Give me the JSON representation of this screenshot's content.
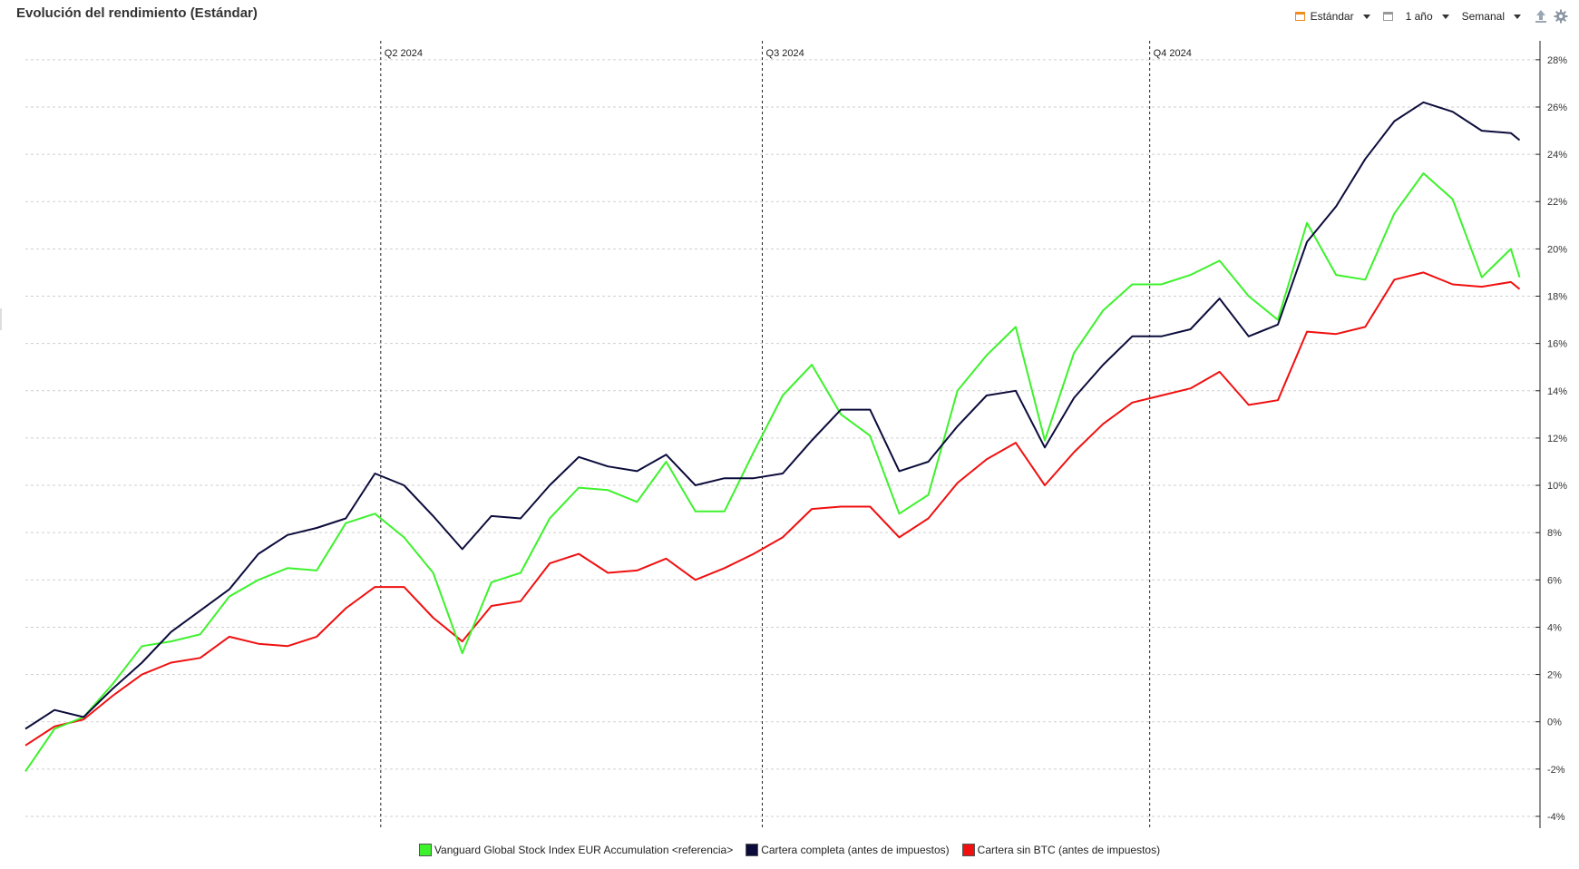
{
  "header": {
    "title": "Evolución del rendimiento (Estándar)"
  },
  "toolbar": {
    "view_label": "Estándar",
    "range_label": "1 año",
    "interval_label": "Semanal"
  },
  "colors": {
    "green": "#3df22c",
    "navy": "#0c0c3c",
    "red": "#f01010"
  },
  "chart_data": {
    "type": "line",
    "title": "Evolución del rendimiento (Estándar)",
    "ylim": [
      -4.5,
      28.8
    ],
    "y_ticks": [
      -4,
      -2,
      0,
      2,
      4,
      6,
      8,
      10,
      12,
      14,
      16,
      18,
      20,
      22,
      24,
      26,
      28
    ],
    "y_tick_suffix": "%",
    "grid": true,
    "legend_position": "bottom",
    "x_range": [
      0,
      52
    ],
    "quarter_markers": [
      {
        "label": "Q2 2024",
        "x": 12.2
      },
      {
        "label": "Q3 2024",
        "x": 25.3
      },
      {
        "label": "Q4 2024",
        "x": 38.6
      }
    ],
    "series": [
      {
        "name": "Vanguard Global Stock Index EUR Accumulation <referencia>",
        "color": "#3df22c",
        "x": [
          0,
          1,
          2,
          3,
          4,
          5,
          6,
          7,
          8,
          9,
          10,
          11,
          12,
          13,
          14,
          15,
          16,
          17,
          18,
          19,
          20,
          21,
          22,
          23,
          24,
          25,
          26,
          27,
          28,
          29,
          30,
          31,
          32,
          33,
          34,
          35,
          36,
          37,
          38,
          39,
          40,
          41,
          42,
          43,
          44,
          45,
          46,
          47,
          48,
          49,
          50,
          51,
          51.3
        ],
        "values": [
          -2.1,
          -0.3,
          0.2,
          1.6,
          3.2,
          3.4,
          3.7,
          5.3,
          6.0,
          6.5,
          6.4,
          8.4,
          8.8,
          7.8,
          6.3,
          2.9,
          5.9,
          6.3,
          8.6,
          9.9,
          9.8,
          9.3,
          11.0,
          8.9,
          8.9,
          11.4,
          13.8,
          15.1,
          13.0,
          12.1,
          8.8,
          9.6,
          14.0,
          15.5,
          16.7,
          11.9,
          15.6,
          17.4,
          18.5,
          18.5,
          18.9,
          19.5,
          18.0,
          17.0,
          21.1,
          18.9,
          18.7,
          21.5,
          23.2,
          22.1,
          18.8,
          20.0,
          18.8
        ]
      },
      {
        "name": "Cartera completa (antes de impuestos)",
        "color": "#0c0c3c",
        "x": [
          0,
          1,
          2,
          3,
          4,
          5,
          6,
          7,
          8,
          9,
          10,
          11,
          12,
          13,
          14,
          15,
          16,
          17,
          18,
          19,
          20,
          21,
          22,
          23,
          24,
          25,
          26,
          27,
          28,
          29,
          30,
          31,
          32,
          33,
          34,
          35,
          36,
          37,
          38,
          39,
          40,
          41,
          42,
          43,
          44,
          45,
          46,
          47,
          48,
          49,
          50,
          51,
          51.3
        ],
        "values": [
          -0.3,
          0.5,
          0.2,
          1.4,
          2.5,
          3.8,
          4.7,
          5.6,
          7.1,
          7.9,
          8.2,
          8.6,
          10.5,
          10.0,
          8.7,
          7.3,
          8.7,
          8.6,
          10.0,
          11.2,
          10.8,
          10.6,
          11.3,
          10.0,
          10.3,
          10.3,
          10.5,
          11.9,
          13.2,
          13.2,
          10.6,
          11.0,
          12.5,
          13.8,
          14.0,
          11.6,
          13.7,
          15.1,
          16.3,
          16.3,
          16.6,
          17.9,
          16.3,
          16.8,
          20.3,
          21.8,
          23.8,
          25.4,
          26.2,
          25.8,
          25.0,
          24.9,
          24.6
        ]
      },
      {
        "name": "Cartera sin BTC (antes de impuestos)",
        "color": "#f01010",
        "x": [
          0,
          1,
          2,
          3,
          4,
          5,
          6,
          7,
          8,
          9,
          10,
          11,
          12,
          13,
          14,
          15,
          16,
          17,
          18,
          19,
          20,
          21,
          22,
          23,
          24,
          25,
          26,
          27,
          28,
          29,
          30,
          31,
          32,
          33,
          34,
          35,
          36,
          37,
          38,
          39,
          40,
          41,
          42,
          43,
          44,
          45,
          46,
          47,
          48,
          49,
          50,
          51,
          51.3
        ],
        "values": [
          -1.0,
          -0.2,
          0.1,
          1.1,
          2.0,
          2.5,
          2.7,
          3.6,
          3.3,
          3.2,
          3.6,
          4.8,
          5.7,
          5.7,
          4.4,
          3.4,
          4.9,
          5.1,
          6.7,
          7.1,
          6.3,
          6.4,
          6.9,
          6.0,
          6.5,
          7.1,
          7.8,
          9.0,
          9.1,
          9.1,
          7.8,
          8.6,
          10.1,
          11.1,
          11.8,
          10.0,
          11.4,
          12.6,
          13.5,
          13.8,
          14.1,
          14.8,
          13.4,
          13.6,
          16.5,
          16.4,
          16.7,
          18.7,
          19.0,
          18.5,
          18.4,
          18.6,
          18.3
        ]
      }
    ]
  }
}
